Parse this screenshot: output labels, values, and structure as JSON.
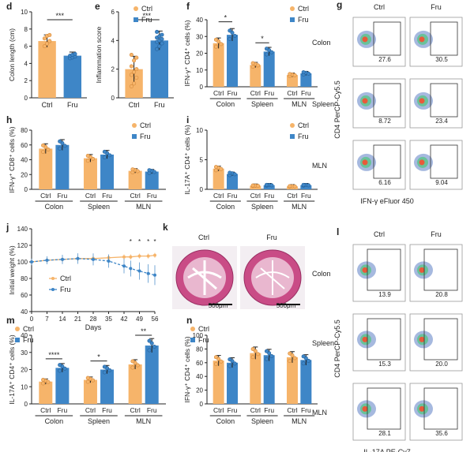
{
  "colors": {
    "ctrl": "#F6B46A",
    "fru": "#3E86C7",
    "ctrl_edge": "#D4893A",
    "fru_edge": "#24609A",
    "axis": "#222222",
    "flow_border": "#9a9a9a"
  },
  "chart_data": [
    {
      "panel": "d",
      "type": "bar",
      "ylabel": "Colon length (cm)",
      "ylim": [
        0,
        10
      ],
      "yticks": [
        0,
        2,
        4,
        6,
        8,
        10
      ],
      "categories": [
        "Ctrl",
        "Fru"
      ],
      "values": [
        6.6,
        4.9
      ],
      "points": [
        [
          6.0,
          6.3,
          6.6,
          6.9,
          7.2,
          7.3
        ],
        [
          4.6,
          4.7,
          4.8,
          4.9,
          5.0,
          5.1
        ]
      ],
      "sig": [
        {
          "from": 0,
          "to": 1,
          "label": "***"
        }
      ]
    },
    {
      "panel": "e",
      "type": "bar",
      "ylabel": "Inflammation score",
      "ylim": [
        0,
        6
      ],
      "yticks": [
        0,
        2,
        4,
        6
      ],
      "categories": [
        "Ctrl",
        "Fru"
      ],
      "values": [
        2.0,
        4.0
      ],
      "points": [
        [
          0.8,
          1.0,
          1.4,
          1.6,
          1.8,
          2.0,
          2.2,
          2.6,
          2.8,
          3.0
        ],
        [
          3.4,
          3.6,
          3.8,
          3.9,
          4.0,
          4.1,
          4.2,
          4.3,
          4.4,
          4.6
        ]
      ],
      "sig": [
        {
          "from": 0,
          "to": 1,
          "label": "***"
        }
      ]
    },
    {
      "panel": "f",
      "type": "bar",
      "ylabel": "IFN-γ⁺ CD4⁺ cells (%)",
      "ylim": [
        0,
        40
      ],
      "yticks": [
        0,
        10,
        20,
        30,
        40
      ],
      "groups": [
        "Colon",
        "Spleen",
        "MLN"
      ],
      "sublabels": [
        "Ctrl",
        "Fru"
      ],
      "series": [
        {
          "name": "Ctrl",
          "values": [
            26,
            13,
            7
          ]
        },
        {
          "name": "Fru",
          "values": [
            31,
            21,
            8
          ]
        }
      ],
      "sig": [
        {
          "group": 0,
          "label": "*"
        },
        {
          "group": 1,
          "label": "*"
        }
      ]
    },
    {
      "panel": "h",
      "type": "bar",
      "ylabel": "IFN-γ⁺ CD8⁺ cells (%)",
      "ylim": [
        0,
        80
      ],
      "yticks": [
        0,
        20,
        40,
        60,
        80
      ],
      "groups": [
        "Colon",
        "Spleen",
        "MLN"
      ],
      "sublabels": [
        "Ctrl",
        "Fru"
      ],
      "series": [
        {
          "name": "Ctrl",
          "values": [
            55,
            42,
            25
          ]
        },
        {
          "name": "Fru",
          "values": [
            60,
            47,
            24
          ]
        }
      ]
    },
    {
      "panel": "i",
      "type": "bar",
      "ylabel": "IL-17A⁺ CD4⁺ cells (%)",
      "ylim": [
        0,
        10
      ],
      "yticks": [
        0,
        5,
        10
      ],
      "groups": [
        "Colon",
        "Spleen",
        "MLN"
      ],
      "sublabels": [
        "Ctrl",
        "Fru"
      ],
      "series": [
        {
          "name": "Ctrl",
          "values": [
            3.5,
            0.6,
            0.5
          ]
        },
        {
          "name": "Fru",
          "values": [
            2.6,
            0.7,
            0.7
          ]
        }
      ]
    },
    {
      "panel": "j",
      "type": "line",
      "xlabel": "Days",
      "ylabel": "Initial weight (%)",
      "ylim": [
        40,
        140
      ],
      "yticks": [
        40,
        60,
        80,
        100,
        120,
        140
      ],
      "xlim": [
        0,
        56
      ],
      "xticks": [
        0,
        7,
        14,
        21,
        28,
        35,
        42,
        49,
        56
      ],
      "x": [
        0,
        7,
        14,
        21,
        28,
        35,
        42,
        45,
        49,
        53,
        56
      ],
      "series": [
        {
          "name": "Ctrl",
          "values": [
            100,
            102,
            103,
            104,
            104,
            105,
            106,
            106,
            107,
            107,
            108
          ]
        },
        {
          "name": "Fru",
          "values": [
            100,
            102,
            103,
            104,
            103,
            101,
            95,
            92,
            89,
            86,
            84
          ]
        }
      ],
      "stars": [
        {
          "x": 45,
          "label": "*"
        },
        {
          "x": 49,
          "label": "*"
        },
        {
          "x": 53,
          "label": "*"
        },
        {
          "x": 56,
          "label": "*"
        }
      ]
    },
    {
      "panel": "m",
      "type": "bar",
      "ylabel": "IL-17A⁺ CD4⁺ cells (%)",
      "ylim": [
        0,
        40
      ],
      "yticks": [
        0,
        10,
        20,
        30,
        40
      ],
      "groups": [
        "Colon",
        "Spleen",
        "MLN"
      ],
      "sublabels": [
        "Ctrl",
        "Fru"
      ],
      "series": [
        {
          "name": "Ctrl",
          "values": [
            13,
            14,
            23
          ]
        },
        {
          "name": "Fru",
          "values": [
            21,
            20,
            34
          ]
        }
      ],
      "sig": [
        {
          "group": 0,
          "label": "****"
        },
        {
          "group": 1,
          "label": "*"
        },
        {
          "group": 2,
          "label": "**"
        }
      ]
    },
    {
      "panel": "n",
      "type": "bar",
      "ylabel": "IFN-γ⁺ CD4⁺ cells (%)",
      "ylim": [
        0,
        100
      ],
      "yticks": [
        0,
        20,
        40,
        60,
        80,
        100
      ],
      "groups": [
        "Colon",
        "Spleen",
        "MLN"
      ],
      "sublabels": [
        "Ctrl",
        "Fru"
      ],
      "series": [
        {
          "name": "Ctrl",
          "values": [
            63,
            74,
            68
          ]
        },
        {
          "name": "Fru",
          "values": [
            60,
            71,
            64
          ]
        }
      ]
    }
  ],
  "legend": {
    "ctrl": "Ctrl",
    "fru": "Fru"
  },
  "panel_letters": {
    "d": "d",
    "e": "e",
    "f": "f",
    "g": "g",
    "h": "h",
    "i": "i",
    "j": "j",
    "k": "k",
    "l": "l",
    "m": "m",
    "n": "n"
  },
  "flow_g": {
    "col_ctrl": "Ctrl",
    "col_fru": "Fru",
    "rows": [
      "Colon",
      "Spleen",
      "MLN"
    ],
    "values": [
      [
        "27.6",
        "30.5"
      ],
      [
        "8.72",
        "23.4"
      ],
      [
        "6.16",
        "9.04"
      ]
    ],
    "xlabel": "IFN-γ eFluor 450",
    "ylabel": "CD4 PerCP-Cy5.5"
  },
  "histology_k": {
    "ctrl": "Ctrl",
    "fru": "Fru",
    "scale": "500μm"
  },
  "flow_l": {
    "col_ctrl": "Ctrl",
    "col_fru": "Fru",
    "rows": [
      "Colon",
      "Spleen",
      "MLN"
    ],
    "values": [
      [
        "13.9",
        "20.8"
      ],
      [
        "15.3",
        "20.0"
      ],
      [
        "28.1",
        "35.6"
      ]
    ],
    "xlabel": "IL-17A PE-Cy7",
    "ylabel": "CD4 PerCP-Cy5.5"
  }
}
